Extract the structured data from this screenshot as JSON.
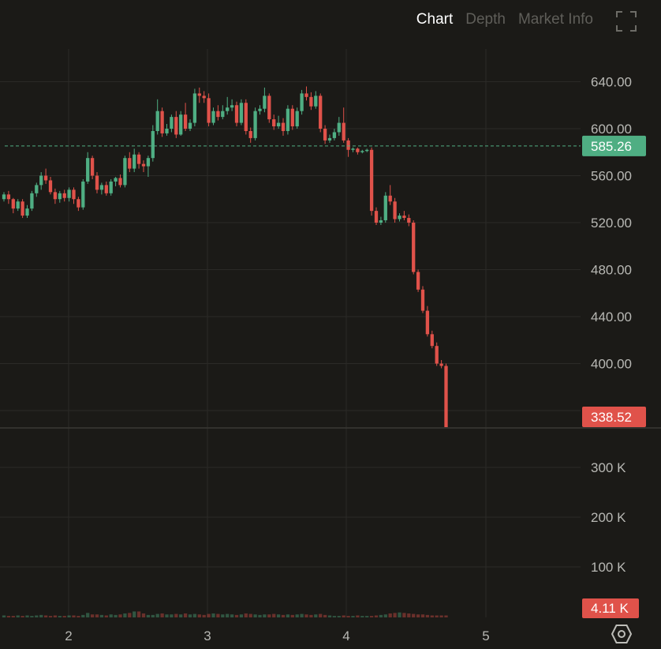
{
  "tabs": [
    {
      "label": "Chart",
      "active": true
    },
    {
      "label": "Depth",
      "active": false
    },
    {
      "label": "Market Info",
      "active": false
    }
  ],
  "icons": {
    "fullscreen": "fullscreen-icon",
    "settings": "hexagon-settings-icon"
  },
  "colors": {
    "up": "#4fae83",
    "down": "#e0524a",
    "grid": "#2b2a27",
    "background": "#1b1a17"
  },
  "chart_data": {
    "type": "candlestick",
    "price_axis": {
      "ticks": [
        "640.00",
        "600.00",
        "560.00",
        "520.00",
        "480.00",
        "440.00",
        "400.00"
      ],
      "ylim": [
        340,
        665
      ]
    },
    "volume_axis": {
      "ticks": [
        "300 K",
        "200 K",
        "100 K"
      ]
    },
    "x_ticks": [
      "2",
      "3",
      "4",
      "5"
    ],
    "last_price_label": "585.26",
    "current_price_label": "338.52",
    "current_volume_label": "4.11 K",
    "grid": true,
    "candles": [
      [
        540,
        544,
        538,
        546
      ],
      [
        544,
        540,
        536,
        547
      ],
      [
        540,
        532,
        528,
        541
      ],
      [
        532,
        538,
        530,
        540
      ],
      [
        538,
        526,
        524,
        540
      ],
      [
        526,
        532,
        524,
        535
      ],
      [
        532,
        545,
        530,
        547
      ],
      [
        545,
        552,
        542,
        554
      ],
      [
        552,
        560,
        548,
        563
      ],
      [
        560,
        556,
        553,
        566
      ],
      [
        556,
        546,
        544,
        559
      ],
      [
        546,
        540,
        536,
        549
      ],
      [
        540,
        545,
        537,
        547
      ],
      [
        545,
        541,
        538,
        548
      ],
      [
        541,
        548,
        538,
        550
      ],
      [
        548,
        540,
        536,
        550
      ],
      [
        540,
        533,
        530,
        542
      ],
      [
        533,
        555,
        531,
        557
      ],
      [
        555,
        575,
        553,
        580
      ],
      [
        575,
        560,
        557,
        577
      ],
      [
        560,
        548,
        545,
        563
      ],
      [
        548,
        552,
        544,
        554
      ],
      [
        552,
        545,
        543,
        555
      ],
      [
        545,
        555,
        543,
        557
      ],
      [
        555,
        558,
        551,
        559
      ],
      [
        558,
        552,
        550,
        561
      ],
      [
        552,
        575,
        550,
        577
      ],
      [
        575,
        566,
        563,
        580
      ],
      [
        566,
        578,
        563,
        583
      ],
      [
        578,
        570,
        566,
        580
      ],
      [
        570,
        568,
        563,
        573
      ],
      [
        568,
        575,
        559,
        577
      ],
      [
        575,
        598,
        572,
        603
      ],
      [
        598,
        615,
        595,
        625
      ],
      [
        615,
        596,
        593,
        618
      ],
      [
        596,
        600,
        594,
        604
      ],
      [
        600,
        610,
        597,
        612
      ],
      [
        610,
        595,
        592,
        615
      ],
      [
        595,
        612,
        594,
        615
      ],
      [
        612,
        600,
        598,
        622
      ],
      [
        600,
        605,
        598,
        608
      ],
      [
        605,
        630,
        602,
        634
      ],
      [
        630,
        628,
        622,
        635
      ],
      [
        628,
        626,
        622,
        632
      ],
      [
        626,
        605,
        602,
        630
      ],
      [
        605,
        615,
        603,
        618
      ],
      [
        615,
        610,
        607,
        620
      ],
      [
        610,
        615,
        608,
        620
      ],
      [
        615,
        618,
        612,
        627
      ],
      [
        618,
        620,
        615,
        625
      ],
      [
        620,
        605,
        602,
        623
      ],
      [
        605,
        622,
        603,
        625
      ],
      [
        622,
        598,
        595,
        625
      ],
      [
        598,
        592,
        588,
        601
      ],
      [
        592,
        615,
        590,
        618
      ],
      [
        615,
        617,
        612,
        620
      ],
      [
        617,
        628,
        614,
        635
      ],
      [
        628,
        608,
        605,
        630
      ],
      [
        608,
        602,
        599,
        612
      ],
      [
        602,
        605,
        600,
        611
      ],
      [
        605,
        598,
        594,
        609
      ],
      [
        598,
        617,
        595,
        620
      ],
      [
        617,
        602,
        599,
        620
      ],
      [
        602,
        615,
        600,
        618
      ],
      [
        615,
        630,
        612,
        633
      ],
      [
        630,
        627,
        624,
        636
      ],
      [
        627,
        619,
        616,
        631
      ],
      [
        619,
        628,
        617,
        632
      ],
      [
        628,
        600,
        597,
        630
      ],
      [
        600,
        590,
        587,
        603
      ],
      [
        590,
        592,
        588,
        595
      ],
      [
        592,
        597,
        590,
        600
      ],
      [
        597,
        605,
        594,
        610
      ],
      [
        605,
        590,
        588,
        618
      ],
      [
        590,
        582,
        576,
        592
      ],
      [
        582,
        583,
        580,
        584
      ],
      [
        583,
        580,
        578,
        584
      ],
      [
        580,
        581,
        579,
        582
      ],
      [
        581,
        582,
        580,
        583
      ],
      [
        582,
        530,
        526,
        584
      ],
      [
        530,
        520,
        518,
        533
      ],
      [
        520,
        522,
        518,
        525
      ],
      [
        522,
        543,
        520,
        546
      ],
      [
        543,
        538,
        535,
        552
      ],
      [
        538,
        523,
        520,
        541
      ],
      [
        523,
        526,
        521,
        528
      ],
      [
        526,
        524,
        522,
        530
      ],
      [
        524,
        520,
        517,
        527
      ],
      [
        520,
        478,
        476,
        522
      ],
      [
        478,
        463,
        461,
        480
      ],
      [
        463,
        445,
        443,
        466
      ],
      [
        445,
        425,
        423,
        449
      ],
      [
        425,
        415,
        413,
        428
      ],
      [
        415,
        400,
        398,
        418
      ],
      [
        400,
        398,
        396,
        403
      ],
      [
        398,
        338.52,
        338,
        400
      ]
    ],
    "volumes": [
      4,
      3,
      3,
      4,
      3,
      4,
      3,
      4,
      5,
      4,
      3,
      4,
      3,
      3,
      4,
      4,
      3,
      5,
      9,
      6,
      6,
      5,
      4,
      6,
      5,
      6,
      8,
      9,
      12,
      12,
      8,
      5,
      5,
      7,
      8,
      6,
      6,
      7,
      6,
      8,
      6,
      7,
      6,
      5,
      7,
      8,
      7,
      6,
      7,
      6,
      5,
      6,
      8,
      7,
      6,
      5,
      6,
      6,
      7,
      6,
      5,
      6,
      5,
      6,
      7,
      6,
      5,
      6,
      7,
      5,
      4,
      3,
      3,
      4,
      3,
      3,
      4,
      3,
      3,
      3,
      4,
      5,
      6,
      8,
      9,
      10,
      9,
      8,
      7,
      6,
      6,
      5,
      4,
      4,
      4,
      4
    ]
  }
}
